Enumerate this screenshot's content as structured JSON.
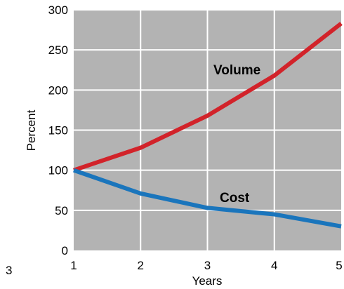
{
  "chart_data": {
    "type": "line",
    "title": "",
    "xlabel": "Years",
    "ylabel": "Percent",
    "x": [
      1,
      2,
      3,
      4,
      5
    ],
    "xlim": [
      1,
      5
    ],
    "ylim": [
      0,
      300
    ],
    "yticks": [
      0,
      50,
      100,
      150,
      200,
      250,
      300
    ],
    "xticks": [
      1,
      2,
      3,
      4,
      5
    ],
    "grid": true,
    "background_color": "#b3b3b3",
    "grid_color": "#ffffff",
    "series": [
      {
        "name": "Volume",
        "color": "#d2232a",
        "values": [
          100,
          128,
          168,
          218,
          283
        ]
      },
      {
        "name": "Cost",
        "color": "#1a75bc",
        "values": [
          100,
          71,
          53,
          45,
          30
        ]
      }
    ]
  },
  "corner_label": "3"
}
